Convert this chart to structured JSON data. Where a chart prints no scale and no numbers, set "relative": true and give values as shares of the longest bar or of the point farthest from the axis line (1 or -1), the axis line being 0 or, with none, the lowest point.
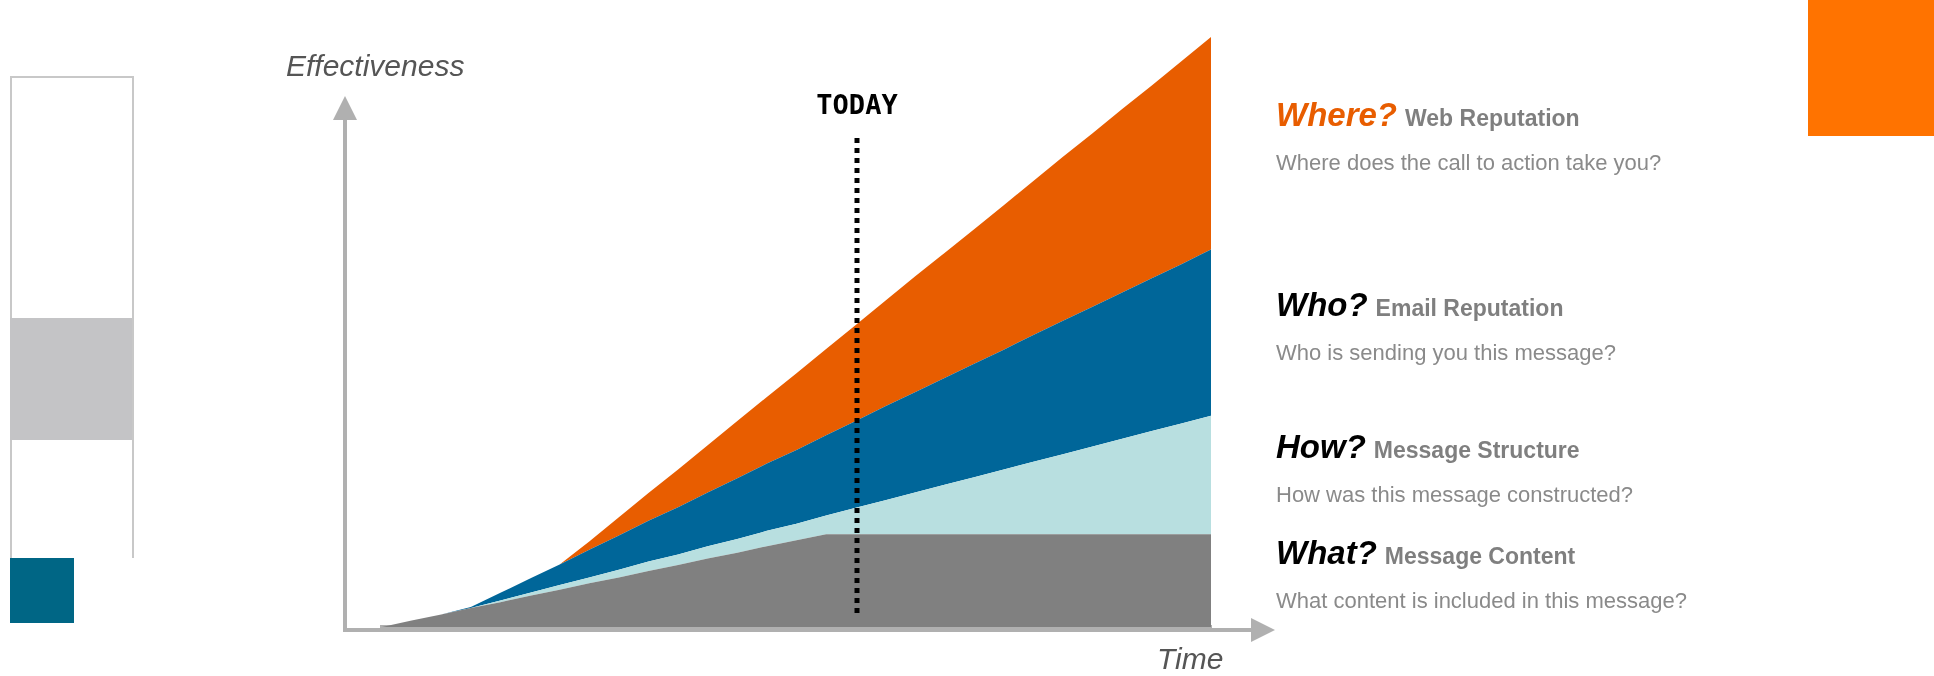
{
  "chart_data": {
    "type": "area",
    "relative": true,
    "stacked": true,
    "xlabel": "Time",
    "ylabel": "Effectiveness",
    "categories": [
      null,
      null,
      null,
      null,
      null,
      null,
      null,
      null,
      null,
      null,
      null,
      null,
      null,
      null,
      null,
      null,
      null,
      null,
      null,
      null,
      null,
      null,
      null,
      null,
      null,
      null,
      null,
      null,
      null
    ],
    "series": [
      {
        "name": "What?",
        "color": "#808080",
        "values": [
          0,
          0.011,
          0.021,
          0.032,
          0.042,
          0.053,
          0.063,
          0.074,
          0.084,
          0.095,
          0.105,
          0.116,
          0.126,
          0.137,
          0.147,
          0.157,
          0.157,
          0.157,
          0.157,
          0.157,
          0.157,
          0.157,
          0.157,
          0.157,
          0.157,
          0.157,
          0.157,
          0.157,
          0.157
        ]
      },
      {
        "name": "How?",
        "color": "#b8dfe0",
        "values": [
          0,
          0,
          0,
          0,
          0.003,
          0.005,
          0.008,
          0.01,
          0.013,
          0.016,
          0.018,
          0.021,
          0.023,
          0.026,
          0.028,
          0.032,
          0.045,
          0.058,
          0.071,
          0.084,
          0.097,
          0.11,
          0.123,
          0.136,
          0.149,
          0.162,
          0.175,
          0.188,
          0.201
        ]
      },
      {
        "name": "Who?",
        "color": "#006699",
        "values": [
          0,
          0,
          0,
          0.002,
          0.013,
          0.024,
          0.035,
          0.047,
          0.058,
          0.069,
          0.08,
          0.091,
          0.103,
          0.114,
          0.125,
          0.136,
          0.147,
          0.159,
          0.17,
          0.181,
          0.192,
          0.203,
          0.215,
          0.226,
          0.237,
          0.248,
          0.259,
          0.27,
          0.282
        ]
      },
      {
        "name": "Where?",
        "color": "#e85d00",
        "values": [
          0,
          0,
          0,
          0,
          0,
          0,
          0,
          0.014,
          0.031,
          0.047,
          0.064,
          0.08,
          0.097,
          0.113,
          0.13,
          0.146,
          0.163,
          0.179,
          0.196,
          0.212,
          0.228,
          0.245,
          0.261,
          0.278,
          0.294,
          0.311,
          0.327,
          0.344,
          0.36
        ]
      }
    ],
    "annotations": [
      "TODAY",
      "Web Reputation",
      "Where does the call to action take you?",
      "Email Reputation",
      "Who is sending you this message?",
      "Message Structure",
      "How was this message constructed?",
      "Message Content",
      "What content is included in this message?"
    ]
  }
}
